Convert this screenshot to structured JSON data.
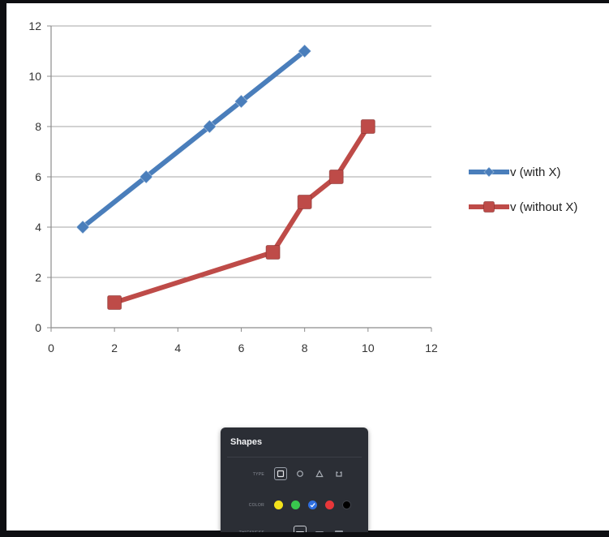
{
  "chart_data": {
    "type": "line",
    "title": "",
    "xlabel": "",
    "ylabel": "",
    "xlim": [
      0,
      12
    ],
    "ylim": [
      0,
      12
    ],
    "x_ticks": [
      0,
      2,
      4,
      6,
      8,
      10,
      12
    ],
    "y_ticks": [
      0,
      2,
      4,
      6,
      8,
      10,
      12
    ],
    "grid": "horizontal",
    "legend_position": "right",
    "series": [
      {
        "name": "v (with X)",
        "color": "#4a7ebb",
        "marker": "diamond",
        "x": [
          1,
          3,
          5,
          6,
          8
        ],
        "y": [
          4,
          6,
          8,
          9,
          11
        ]
      },
      {
        "name": "v (without X)",
        "color": "#be4b48",
        "marker": "square",
        "x": [
          2,
          7,
          8,
          9,
          10
        ],
        "y": [
          1,
          3,
          5,
          6,
          8
        ]
      }
    ]
  },
  "shapes_panel": {
    "title": "Shapes",
    "type_label": "TYPE",
    "color_label": "COLOR",
    "thickness_label": "THICKNESS",
    "type_options": [
      "square-icon",
      "circle-icon",
      "triangle-icon",
      "cup-icon"
    ],
    "selected_type": "square-icon",
    "color_options": [
      "#f3e21b",
      "#39c84e",
      "#2f6fe0",
      "#e8373a",
      "#000000"
    ],
    "selected_color": "#2f6fe0",
    "thickness_options": 4,
    "selected_thickness": 2
  }
}
